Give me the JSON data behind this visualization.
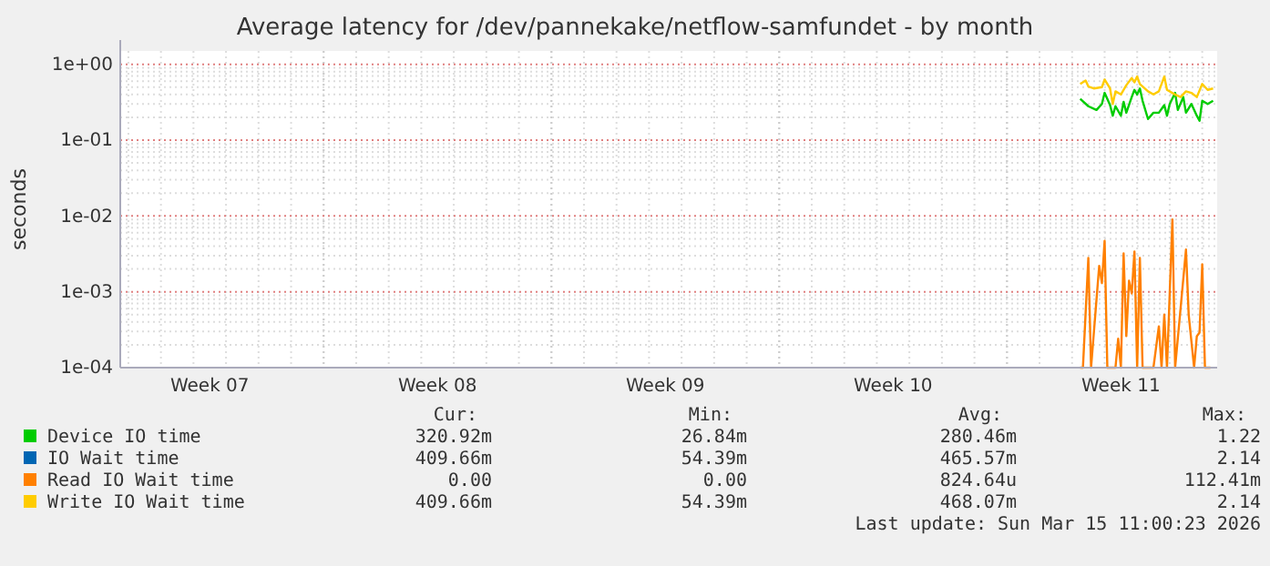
{
  "chart_data": {
    "type": "line",
    "title": "Average latency for /dev/pannekake/netflow-samfundet - by month",
    "ylabel": "seconds",
    "log": true,
    "grid": true,
    "legend": "bottom",
    "xlim": [
      "2026-02-09T18:00",
      "2026-03-15T11:00"
    ],
    "xticks": [
      {
        "value": "2026-02-12T12:00",
        "label": "Week 07"
      },
      {
        "value": "2026-02-16T00:00",
        "label": null
      },
      {
        "value": "2026-02-19T12:00",
        "label": "Week 08"
      },
      {
        "value": "2026-02-23T00:00",
        "label": null
      },
      {
        "value": "2026-02-26T12:00",
        "label": "Week 09"
      },
      {
        "value": "2026-03-02T00:00",
        "label": null
      },
      {
        "value": "2026-03-05T12:00",
        "label": "Week 10"
      },
      {
        "value": "2026-03-09T00:00",
        "label": null
      },
      {
        "value": "2026-03-12T12:00",
        "label": "Week 11"
      }
    ],
    "ylim": [
      0.0001,
      1.5
    ],
    "yticks": [
      {
        "value": 0.0001,
        "label": "1e-04"
      },
      {
        "value": 0.001,
        "label": "1e-03"
      },
      {
        "value": 0.01,
        "label": "1e-02"
      },
      {
        "value": 0.1,
        "label": "1e-01"
      },
      {
        "value": 1,
        "label": "1e+00"
      }
    ],
    "series": [
      {
        "name": "Device IO time",
        "color": "#00cc00",
        "x": [
          "2026-03-11T06:00",
          "2026-03-11T12:00",
          "2026-03-11T18:00",
          "2026-03-11T22:00",
          "2026-03-12T00:00",
          "2026-03-12T04:00",
          "2026-03-12T06:00",
          "2026-03-12T08:00",
          "2026-03-12T12:00",
          "2026-03-12T14:00",
          "2026-03-12T16:00",
          "2026-03-12T20:00",
          "2026-03-12T22:00",
          "2026-03-13T00:00",
          "2026-03-13T02:00",
          "2026-03-13T04:00",
          "2026-03-13T08:00",
          "2026-03-13T12:00",
          "2026-03-13T16:00",
          "2026-03-13T20:00",
          "2026-03-13T22:00",
          "2026-03-14T00:00",
          "2026-03-14T04:00",
          "2026-03-14T06:00",
          "2026-03-14T10:00",
          "2026-03-14T12:00",
          "2026-03-14T16:00",
          "2026-03-14T20:00",
          "2026-03-14T22:00",
          "2026-03-15T00:00",
          "2026-03-15T04:00",
          "2026-03-15T08:00"
        ],
        "values": [
          0.35,
          0.28,
          0.25,
          0.3,
          0.42,
          0.29,
          0.21,
          0.28,
          0.21,
          0.32,
          0.23,
          0.37,
          0.46,
          0.4,
          0.48,
          0.33,
          0.19,
          0.23,
          0.23,
          0.29,
          0.21,
          0.3,
          0.42,
          0.25,
          0.37,
          0.23,
          0.3,
          0.21,
          0.18,
          0.33,
          0.3,
          0.33
        ]
      },
      {
        "name": "IO Wait time",
        "color": "#0066b3"
      },
      {
        "name": "Read IO Wait time",
        "color": "#ff8000",
        "x": [
          "2026-03-11T06:00",
          "2026-03-11T08:00",
          "2026-03-11T12:00",
          "2026-03-11T14:00",
          "2026-03-11T20:00",
          "2026-03-11T22:00",
          "2026-03-12T00:00",
          "2026-03-12T02:00",
          "2026-03-12T08:00",
          "2026-03-12T10:00",
          "2026-03-12T12:00",
          "2026-03-12T14:00",
          "2026-03-12T16:00",
          "2026-03-12T18:00",
          "2026-03-12T20:00",
          "2026-03-12T22:00",
          "2026-03-13T00:00",
          "2026-03-13T02:00",
          "2026-03-13T04:00",
          "2026-03-13T12:00",
          "2026-03-13T16:00",
          "2026-03-13T18:00",
          "2026-03-13T20:00",
          "2026-03-13T22:00",
          "2026-03-14T02:00",
          "2026-03-14T04:00",
          "2026-03-14T12:00",
          "2026-03-14T14:00",
          "2026-03-14T18:00",
          "2026-03-14T20:00",
          "2026-03-14T22:00",
          "2026-03-15T00:00",
          "2026-03-15T02:00",
          "2026-03-15T06:00"
        ],
        "values": [
          0.0001,
          0.0001,
          0.0028,
          0.0001,
          0.0022,
          0.0013,
          0.0047,
          0.0001,
          0.0001,
          0.00024,
          0.0001,
          0.0032,
          0.00026,
          0.0014,
          0.00095,
          0.0034,
          0.0001,
          0.0028,
          0.0001,
          0.0001,
          0.00035,
          0.0001,
          0.0005,
          0.0001,
          0.009,
          0.0001,
          0.0036,
          0.0005,
          0.0001,
          0.00026,
          0.00029,
          0.0023,
          0.0001,
          0.0001
        ]
      },
      {
        "name": "Write IO Wait time",
        "color": "#ffcc00",
        "x": [
          "2026-03-11T06:00",
          "2026-03-11T10:00",
          "2026-03-11T12:00",
          "2026-03-11T16:00",
          "2026-03-11T22:00",
          "2026-03-12T00:00",
          "2026-03-12T04:00",
          "2026-03-12T06:00",
          "2026-03-12T08:00",
          "2026-03-12T12:00",
          "2026-03-12T16:00",
          "2026-03-12T20:00",
          "2026-03-12T22:00",
          "2026-03-13T00:00",
          "2026-03-13T02:00",
          "2026-03-13T08:00",
          "2026-03-13T12:00",
          "2026-03-13T16:00",
          "2026-03-13T20:00",
          "2026-03-13T22:00",
          "2026-03-14T04:00",
          "2026-03-14T08:00",
          "2026-03-14T12:00",
          "2026-03-14T16:00",
          "2026-03-14T20:00",
          "2026-03-15T00:00",
          "2026-03-15T04:00",
          "2026-03-15T08:00"
        ],
        "values": [
          0.55,
          0.61,
          0.51,
          0.48,
          0.5,
          0.63,
          0.48,
          0.3,
          0.44,
          0.4,
          0.53,
          0.66,
          0.58,
          0.69,
          0.55,
          0.44,
          0.4,
          0.44,
          0.69,
          0.46,
          0.4,
          0.37,
          0.44,
          0.42,
          0.37,
          0.55,
          0.46,
          0.48
        ]
      }
    ],
    "annotations": [
      "Cur:",
      "Min:",
      "Avg:",
      "Max:",
      "320.92m",
      "26.84m",
      "280.46m",
      "1.22",
      "409.66m",
      "54.39m",
      "465.57m",
      "2.14",
      "0.00",
      "0.00",
      "824.64u",
      "112.41m",
      "409.66m",
      "54.39m",
      "468.07m",
      "2.14",
      "Last update: Sun Mar 15 11:00:23 2026"
    ]
  }
}
